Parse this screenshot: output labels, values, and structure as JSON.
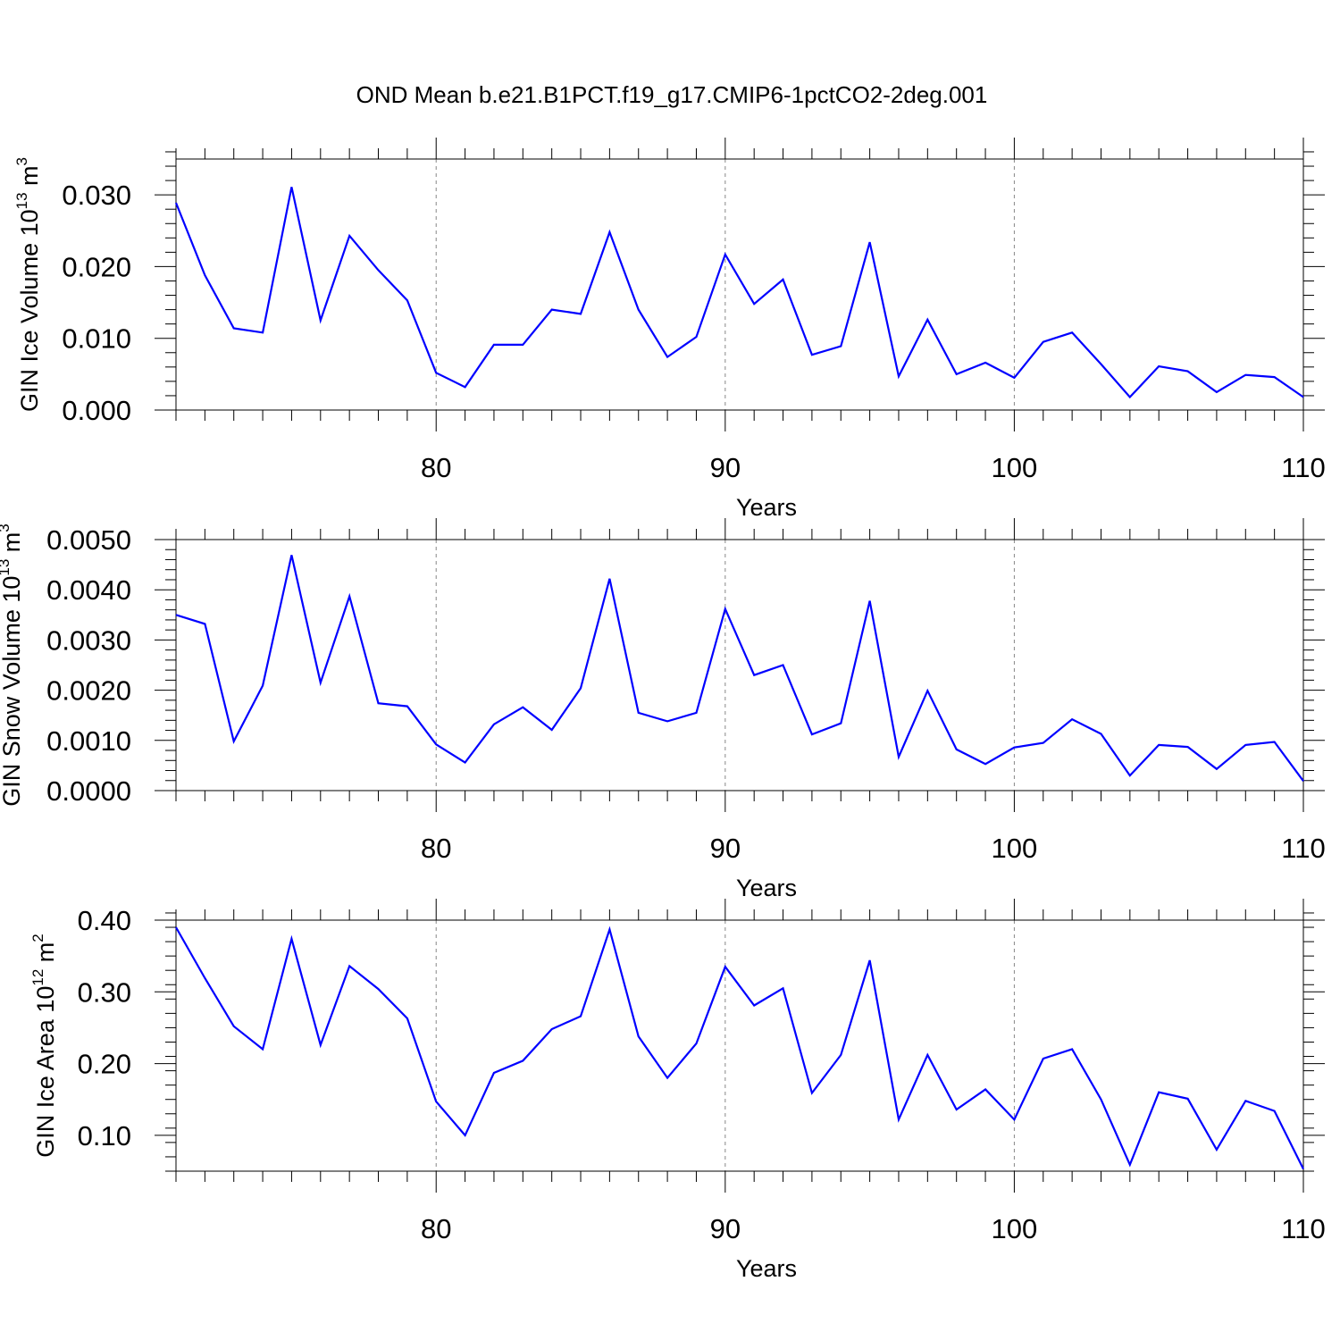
{
  "title": "OND Mean b.e21.B1PCT.f19_g17.CMIP6-1pctCO2-2deg.001",
  "colors": {
    "line": "#0000ff",
    "grid": "#888888",
    "axis": "#000000"
  },
  "chart_data": [
    {
      "type": "line",
      "ylabel_main": "GIN Ice Volume 10",
      "ylabel_exp": "13",
      "ylabel_unit": " m",
      "ylabel_unit_exp": "3",
      "xlabel": "Years",
      "xlim": [
        71,
        110
      ],
      "ylim": [
        0,
        0.035
      ],
      "yticks": [
        0,
        0.01,
        0.02,
        0.03
      ],
      "ytick_labels": [
        "0.000",
        "0.010",
        "0.020",
        "0.030"
      ],
      "yminor_step": 0.002,
      "xticks": [
        80,
        90,
        100,
        110
      ],
      "xtick_labels": [
        "80",
        "90",
        "100",
        "110"
      ],
      "grid_x": [
        80,
        90,
        100
      ],
      "series": [
        {
          "x": [
            71,
            72,
            73,
            74,
            75,
            76,
            77,
            78,
            79,
            80,
            81,
            82,
            83,
            84,
            85,
            86,
            87,
            88,
            89,
            90,
            91,
            92,
            93,
            94,
            95,
            96,
            97,
            98,
            99,
            100,
            101,
            102,
            103,
            104,
            105,
            106,
            107,
            108,
            109,
            110
          ],
          "y": [
            0.0289,
            0.0188,
            0.0114,
            0.0108,
            0.0311,
            0.0125,
            0.0243,
            0.0195,
            0.0153,
            0.0052,
            0.0032,
            0.0091,
            0.0091,
            0.014,
            0.0134,
            0.0248,
            0.014,
            0.0074,
            0.0102,
            0.0217,
            0.0148,
            0.0182,
            0.0077,
            0.0089,
            0.0234,
            0.0047,
            0.0126,
            0.005,
            0.0066,
            0.0045,
            0.0095,
            0.0108,
            0.0064,
            0.0018,
            0.0061,
            0.0054,
            0.0025,
            0.0049,
            0.0046,
            0.0018
          ]
        }
      ]
    },
    {
      "type": "line",
      "ylabel_main": "GIN Snow Volume 10",
      "ylabel_exp": "13",
      "ylabel_unit": " m",
      "ylabel_unit_exp": "3",
      "xlabel": "Years",
      "xlim": [
        71,
        110
      ],
      "ylim": [
        0,
        0.005
      ],
      "yticks": [
        0,
        0.001,
        0.002,
        0.003,
        0.004,
        0.005
      ],
      "ytick_labels": [
        "0.0000",
        "0.0010",
        "0.0020",
        "0.0030",
        "0.0040",
        "0.0050"
      ],
      "yminor_step": 0.0002,
      "xticks": [
        80,
        90,
        100,
        110
      ],
      "xtick_labels": [
        "80",
        "90",
        "100",
        "110"
      ],
      "grid_x": [
        80,
        90,
        100
      ],
      "series": [
        {
          "x": [
            71,
            72,
            73,
            74,
            75,
            76,
            77,
            78,
            79,
            80,
            81,
            82,
            83,
            84,
            85,
            86,
            87,
            88,
            89,
            90,
            91,
            92,
            93,
            94,
            95,
            96,
            97,
            98,
            99,
            100,
            101,
            102,
            103,
            104,
            105,
            106,
            107,
            108,
            109,
            110
          ],
          "y": [
            0.0035,
            0.00332,
            0.00098,
            0.00209,
            0.00469,
            0.00215,
            0.00387,
            0.00174,
            0.00168,
            0.00092,
            0.00056,
            0.00132,
            0.00166,
            0.00121,
            0.00204,
            0.00422,
            0.00155,
            0.00138,
            0.00155,
            0.00362,
            0.0023,
            0.0025,
            0.00112,
            0.00134,
            0.00378,
            0.00067,
            0.00199,
            0.00082,
            0.00053,
            0.00086,
            0.00095,
            0.00142,
            0.00113,
            0.0003,
            0.00091,
            0.00087,
            0.00043,
            0.00091,
            0.00097,
            0.00019
          ]
        }
      ]
    },
    {
      "type": "line",
      "ylabel_main": "GIN Ice Area 10",
      "ylabel_exp": "12",
      "ylabel_unit": " m",
      "ylabel_unit_exp": "2",
      "xlabel": "Years",
      "xlim": [
        71,
        110
      ],
      "ylim": [
        0.05,
        0.4
      ],
      "yticks": [
        0.1,
        0.2,
        0.3,
        0.4
      ],
      "ytick_labels": [
        "0.10",
        "0.20",
        "0.30",
        "0.40"
      ],
      "yminor_step": 0.02,
      "xticks": [
        80,
        90,
        100,
        110
      ],
      "xtick_labels": [
        "80",
        "90",
        "100",
        "110"
      ],
      "grid_x": [
        80,
        90,
        100
      ],
      "series": [
        {
          "x": [
            71,
            72,
            73,
            74,
            75,
            76,
            77,
            78,
            79,
            80,
            81,
            82,
            83,
            84,
            85,
            86,
            87,
            88,
            89,
            90,
            91,
            92,
            93,
            94,
            95,
            96,
            97,
            98,
            99,
            100,
            101,
            102,
            103,
            104,
            105,
            106,
            107,
            108,
            109,
            110
          ],
          "y": [
            0.39,
            0.319,
            0.252,
            0.22,
            0.374,
            0.226,
            0.336,
            0.304,
            0.263,
            0.147,
            0.1,
            0.187,
            0.204,
            0.248,
            0.266,
            0.387,
            0.238,
            0.18,
            0.228,
            0.335,
            0.281,
            0.305,
            0.159,
            0.212,
            0.344,
            0.122,
            0.212,
            0.136,
            0.164,
            0.122,
            0.207,
            0.22,
            0.15,
            0.059,
            0.16,
            0.151,
            0.08,
            0.148,
            0.134,
            0.053
          ]
        }
      ]
    }
  ]
}
